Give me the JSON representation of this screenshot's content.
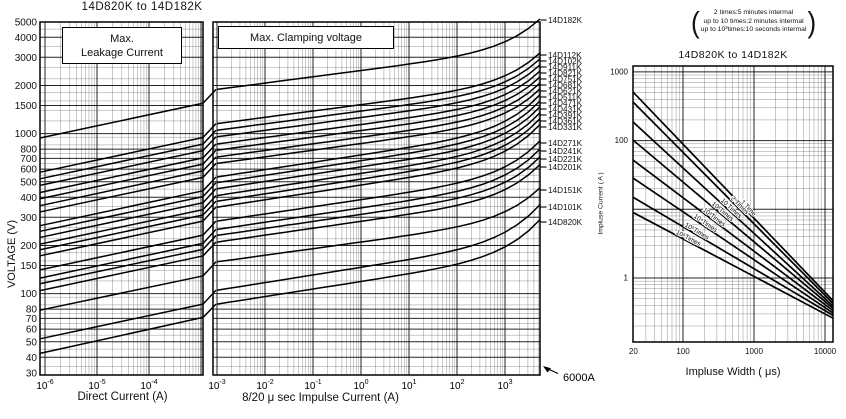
{
  "page": {
    "left_title": "14D820K to 14D182K",
    "box1_line1": "Max.",
    "box1_line2": "Leakage Current",
    "box2": "Max. Clamping voltage",
    "xlabel_left": "Direct Current  (A)",
    "xlabel_mid": "8/20 μ sec Impulse Current (A)",
    "ylabel_left": "VOLTAGE (V)",
    "annotation_6000a": "6000A",
    "note_line1": "2 times:5 minutes intermal",
    "note_line2": "up to 10 times:2 minutes intermal",
    "note_line3": "up to 10³times:10 seconds intermal",
    "paren_open": "(",
    "paren_close": ")",
    "right_title": "14D820K to 14D182K",
    "xlabel_right": "Impluse Width ( μs)",
    "ylabel_right": "Impluse Current ( A )"
  },
  "chart_data": [
    {
      "type": "line",
      "title": "Max. Leakage Current",
      "xlabel": "Direct Current (A)",
      "ylabel": "VOLTAGE (V)",
      "x_scale": "log",
      "y_scale": "log",
      "xlim": [
        1e-06,
        0.001
      ],
      "ylim": [
        30,
        5000
      ],
      "x_tick_exps": [
        -6,
        -5,
        -4
      ],
      "y_ticks": [
        5000,
        4000,
        3000,
        2000,
        1500,
        1000,
        800,
        700,
        600,
        500,
        400,
        300,
        200,
        150,
        100,
        80,
        70,
        60,
        50,
        40,
        30
      ],
      "grid": true,
      "series": [
        {
          "name": "14D182K",
          "points": [
            [
              1e-06,
              954
            ],
            [
              0.001,
              1548
            ]
          ]
        },
        {
          "name": "14D112K",
          "points": [
            [
              1e-06,
              583
            ],
            [
              0.001,
              946
            ]
          ]
        },
        {
          "name": "14D102K",
          "points": [
            [
              1e-06,
              530
            ],
            [
              0.001,
              860
            ]
          ]
        },
        {
          "name": "14D911K",
          "points": [
            [
              1e-06,
              482
            ],
            [
              0.001,
              783
            ]
          ]
        },
        {
          "name": "14D821K",
          "points": [
            [
              1e-06,
              435
            ],
            [
              0.001,
              705
            ]
          ]
        },
        {
          "name": "14D751K",
          "points": [
            [
              1e-06,
              398
            ],
            [
              0.001,
              645
            ]
          ]
        },
        {
          "name": "14D681K",
          "points": [
            [
              1e-06,
              360
            ],
            [
              0.001,
              585
            ]
          ]
        },
        {
          "name": "14D621K",
          "points": [
            [
              1e-06,
              329
            ],
            [
              0.001,
              533
            ]
          ]
        },
        {
          "name": "14D511K",
          "points": [
            [
              1e-06,
              270
            ],
            [
              0.001,
              439
            ]
          ]
        },
        {
          "name": "14D471K",
          "points": [
            [
              1e-06,
              249
            ],
            [
              0.001,
              404
            ]
          ]
        },
        {
          "name": "14D431K",
          "points": [
            [
              1e-06,
              228
            ],
            [
              0.001,
              370
            ]
          ]
        },
        {
          "name": "14D391K",
          "points": [
            [
              1e-06,
              207
            ],
            [
              0.001,
              335
            ]
          ]
        },
        {
          "name": "14D361K",
          "points": [
            [
              1e-06,
              191
            ],
            [
              0.001,
              310
            ]
          ]
        },
        {
          "name": "14D331K",
          "points": [
            [
              1e-06,
              175
            ],
            [
              0.001,
              284
            ]
          ]
        },
        {
          "name": "14D271K",
          "points": [
            [
              1e-06,
              143
            ],
            [
              0.001,
              232
            ]
          ]
        },
        {
          "name": "14D241K",
          "points": [
            [
              1e-06,
              127
            ],
            [
              0.001,
              206
            ]
          ]
        },
        {
          "name": "14D221K",
          "points": [
            [
              1e-06,
              117
            ],
            [
              0.001,
              189
            ]
          ]
        },
        {
          "name": "14D201K",
          "points": [
            [
              1e-06,
              106
            ],
            [
              0.001,
              172
            ]
          ]
        },
        {
          "name": "14D151K",
          "points": [
            [
              1e-06,
              80
            ],
            [
              0.001,
              129
            ]
          ]
        },
        {
          "name": "14D101K",
          "points": [
            [
              1e-06,
              53
            ],
            [
              0.001,
              86
            ]
          ]
        },
        {
          "name": "14D820K",
          "points": [
            [
              1e-06,
              43
            ],
            [
              0.001,
              71
            ]
          ]
        }
      ]
    },
    {
      "type": "line",
      "title": "Max. Clamping voltage",
      "xlabel": "8/20 μ sec Impulse Current (A)",
      "x_scale": "log",
      "y_scale": "log",
      "xlim": [
        0.001,
        6000
      ],
      "ylim": [
        30,
        5000
      ],
      "x_tick_exps": [
        -3,
        -2,
        -1,
        0,
        1,
        2,
        3
      ],
      "annotation": "6000A",
      "grid": true,
      "series": [
        {
          "name": "14D182K",
          "label_y": 20,
          "points": [
            [
              0.001,
              1890
            ],
            [
              6000,
              5200
            ]
          ]
        },
        {
          "name": "14D112K",
          "label_y": 55,
          "points": [
            [
              0.001,
              1155
            ],
            [
              6000,
              3190
            ]
          ]
        },
        {
          "name": "14D102K",
          "label_y": 61,
          "points": [
            [
              0.001,
              1050
            ],
            [
              6000,
              2930
            ]
          ]
        },
        {
          "name": "14D911K",
          "label_y": 67,
          "points": [
            [
              0.001,
              956
            ],
            [
              6000,
              2690
            ]
          ]
        },
        {
          "name": "14D821K",
          "label_y": 73,
          "points": [
            [
              0.001,
              861
            ],
            [
              6000,
              2460
            ]
          ]
        },
        {
          "name": "14D751K",
          "label_y": 79,
          "points": [
            [
              0.001,
              788
            ],
            [
              6000,
              2260
            ]
          ]
        },
        {
          "name": "14D681K",
          "label_y": 85,
          "points": [
            [
              0.001,
              714
            ],
            [
              6000,
              2070
            ]
          ]
        },
        {
          "name": "14D621K",
          "label_y": 91,
          "points": [
            [
              0.001,
              651
            ],
            [
              6000,
              1900
            ]
          ]
        },
        {
          "name": "14D511K",
          "label_y": 97,
          "points": [
            [
              0.001,
              536
            ],
            [
              6000,
              1750
            ]
          ]
        },
        {
          "name": "14D471K",
          "label_y": 103,
          "points": [
            [
              0.001,
              494
            ],
            [
              6000,
              1600
            ]
          ]
        },
        {
          "name": "14D431K",
          "label_y": 109,
          "points": [
            [
              0.001,
              452
            ],
            [
              6000,
              1470
            ]
          ]
        },
        {
          "name": "14D391K",
          "label_y": 115,
          "points": [
            [
              0.001,
              410
            ],
            [
              6000,
              1350
            ]
          ]
        },
        {
          "name": "14D361K",
          "label_y": 121,
          "points": [
            [
              0.001,
              378
            ],
            [
              6000,
              1240
            ]
          ]
        },
        {
          "name": "14D331K",
          "label_y": 127,
          "points": [
            [
              0.001,
              347
            ],
            [
              6000,
              1140
            ]
          ]
        },
        {
          "name": "14D271K",
          "label_y": 143,
          "points": [
            [
              0.001,
              284
            ],
            [
              6000,
              900
            ]
          ]
        },
        {
          "name": "14D241K",
          "label_y": 151,
          "points": [
            [
              0.001,
              252
            ],
            [
              6000,
              800
            ]
          ]
        },
        {
          "name": "14D221K",
          "label_y": 159,
          "points": [
            [
              0.001,
              231
            ],
            [
              6000,
              715
            ]
          ]
        },
        {
          "name": "14D201K",
          "label_y": 167,
          "points": [
            [
              0.001,
              210
            ],
            [
              6000,
              640
            ]
          ]
        },
        {
          "name": "14D151K",
          "label_y": 190,
          "points": [
            [
              0.001,
              158
            ],
            [
              6000,
              458
            ]
          ]
        },
        {
          "name": "14D101K",
          "label_y": 207,
          "points": [
            [
              0.001,
              105
            ],
            [
              6000,
              360
            ]
          ]
        },
        {
          "name": "14D820K",
          "label_y": 222,
          "points": [
            [
              0.001,
              86
            ],
            [
              6000,
              290
            ]
          ]
        }
      ]
    },
    {
      "type": "line",
      "title": "14D820K to 14D182K",
      "note_lines": [
        "2 times:5 minutes intermal",
        "up to 10 times:2 minutes intermal",
        "up to 10³times:10 seconds intermal"
      ],
      "xlabel": "Impluse Width ( μs)",
      "ylabel": "Impluse Current ( A )",
      "x_scale": "log",
      "y_scale": "log",
      "xlim": [
        20,
        12000
      ],
      "ylim": [
        0.12,
        1250
      ],
      "x_ticks": [
        20,
        100,
        1000,
        10000
      ],
      "y_ticks": [
        1000,
        100,
        1
      ],
      "grid": true,
      "series": [
        {
          "name": "1 Time",
          "points": [
            [
              20,
              510
            ],
            [
              10000,
              0.62
            ]
          ]
        },
        {
          "name": "2 Times",
          "points": [
            [
              20,
              365
            ],
            [
              10000,
              0.56
            ]
          ]
        },
        {
          "name": "10 Times",
          "points": [
            [
              20,
              187
            ],
            [
              10000,
              0.5
            ]
          ]
        },
        {
          "name": "10²Times",
          "points": [
            [
              20,
              102
            ],
            [
              10000,
              0.455
            ]
          ]
        },
        {
          "name": "10³Times",
          "points": [
            [
              20,
              52
            ],
            [
              10000,
              0.41
            ]
          ]
        },
        {
          "name": "10⁴Times",
          "points": [
            [
              20,
              28.5
            ],
            [
              10000,
              0.37
            ]
          ]
        },
        {
          "name": "10⁵Times",
          "points": [
            [
              20,
              15
            ],
            [
              10000,
              0.335
            ]
          ]
        },
        {
          "name": "10⁶Times",
          "points": [
            [
              20,
              9
            ],
            [
              10000,
              0.3
            ]
          ]
        }
      ]
    }
  ]
}
